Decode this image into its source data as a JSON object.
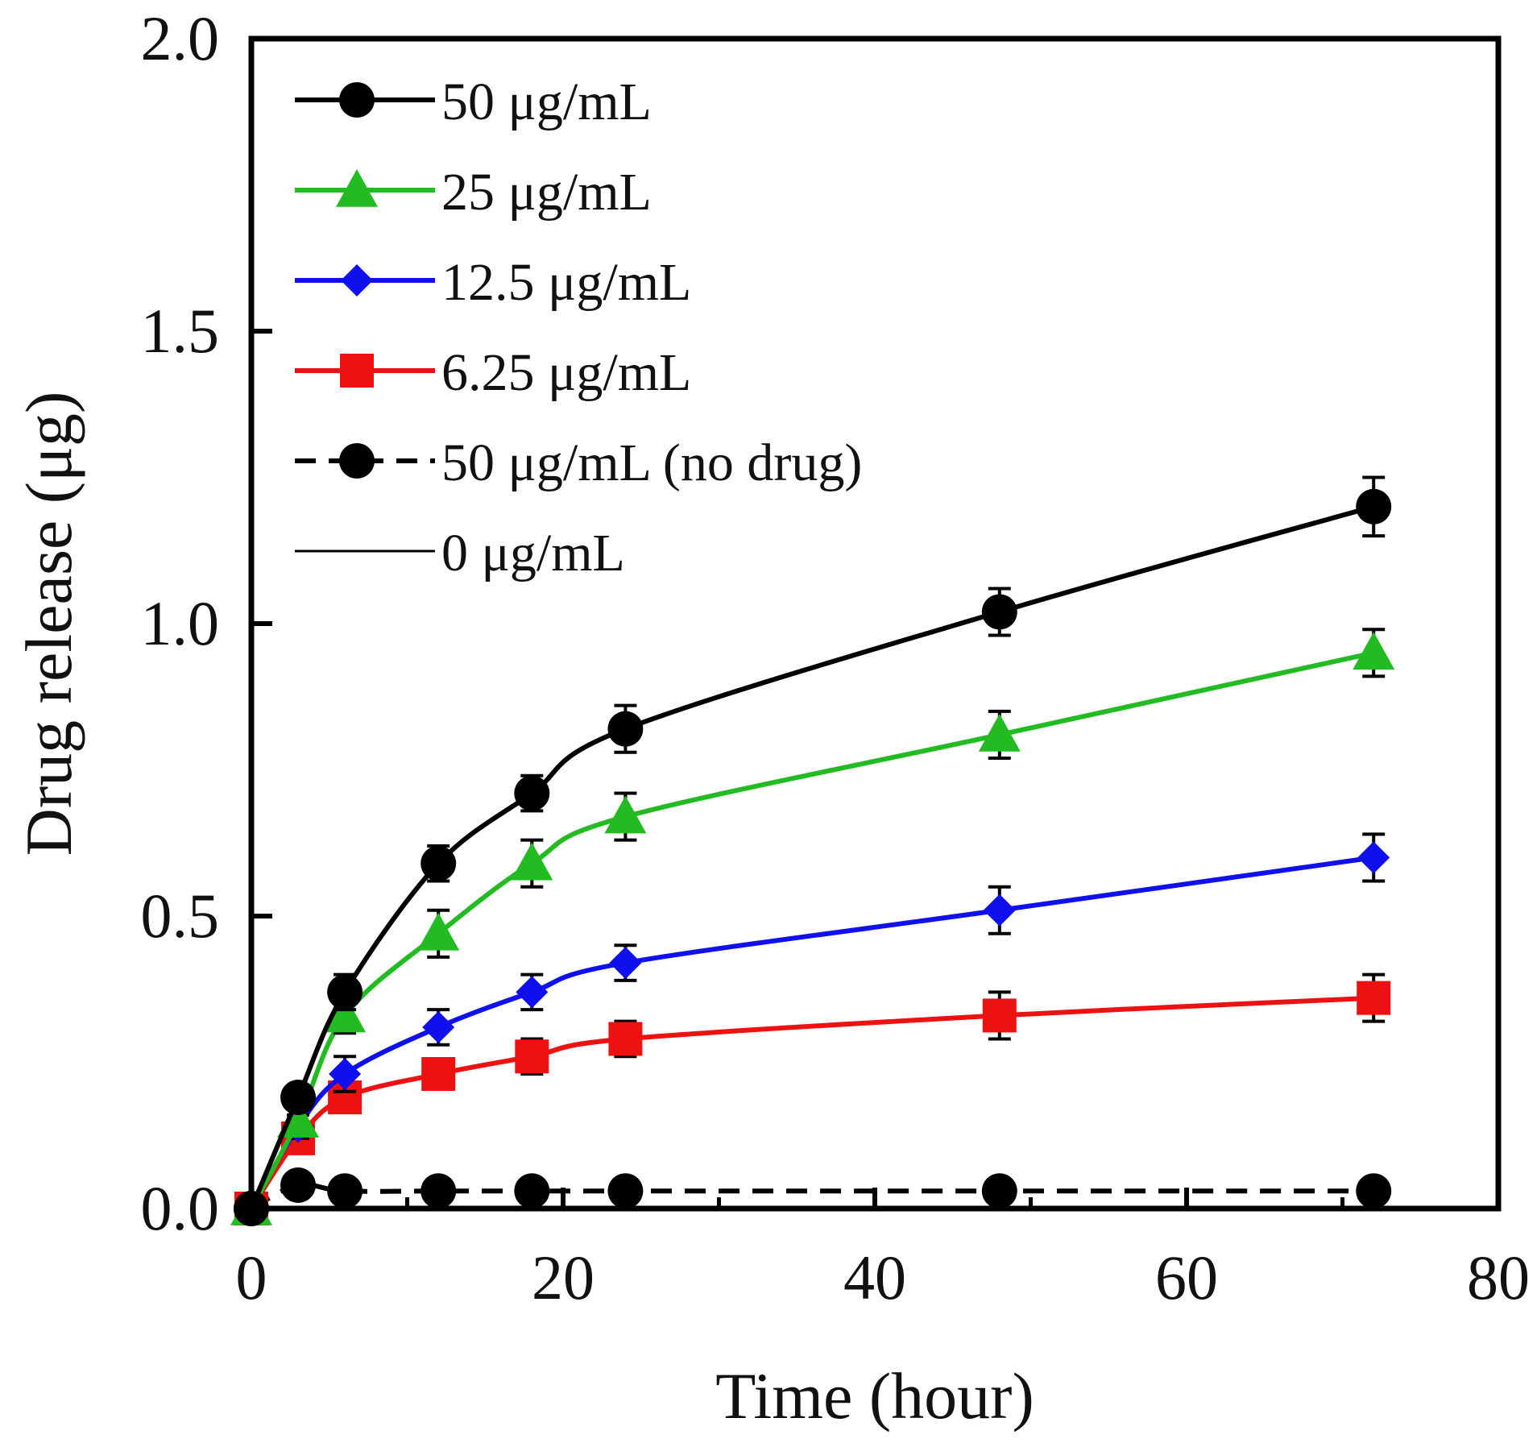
{
  "chart_data": {
    "type": "line",
    "title": "",
    "xlabel": "Time (hour)",
    "ylabel": "Drug release (μg)",
    "xlim": [
      0,
      80
    ],
    "ylim": [
      0,
      2.0
    ],
    "xticks": [
      0,
      20,
      40,
      60,
      80
    ],
    "xtick_labels": [
      "0",
      "20",
      "40",
      "60",
      "80"
    ],
    "yticks": [
      0,
      0.5,
      1.0,
      1.5,
      2.0
    ],
    "ytick_labels": [
      "0.0",
      "0.5",
      "1.0",
      "1.5",
      "2.0"
    ],
    "grid": false,
    "legend_position": "top-left",
    "x": [
      0,
      3,
      6,
      12,
      18,
      24,
      48,
      72
    ],
    "series": [
      {
        "name": "50 μg/mL",
        "color": "#000000",
        "marker": "circle",
        "dash": "solid",
        "values": [
          0,
          0.19,
          0.37,
          0.59,
          0.71,
          0.82,
          1.02,
          1.2
        ],
        "errors": [
          0,
          0.02,
          0.03,
          0.03,
          0.03,
          0.04,
          0.04,
          0.05
        ]
      },
      {
        "name": "25 μg/mL",
        "color": "#22bb22",
        "marker": "triangle",
        "dash": "solid",
        "values": [
          0,
          0.15,
          0.33,
          0.47,
          0.59,
          0.67,
          0.81,
          0.95
        ],
        "errors": [
          0,
          0.02,
          0.03,
          0.04,
          0.04,
          0.04,
          0.04,
          0.04
        ]
      },
      {
        "name": "12.5 μg/mL",
        "color": "#1010ee",
        "marker": "diamond",
        "dash": "solid",
        "values": [
          0,
          0.14,
          0.23,
          0.31,
          0.37,
          0.42,
          0.51,
          0.6
        ],
        "errors": [
          0,
          0.02,
          0.03,
          0.03,
          0.03,
          0.03,
          0.04,
          0.04
        ]
      },
      {
        "name": "6.25 μg/mL",
        "color": "#ee1111",
        "marker": "square",
        "dash": "solid",
        "values": [
          0,
          0.12,
          0.19,
          0.23,
          0.26,
          0.29,
          0.33,
          0.36
        ],
        "errors": [
          0,
          0.02,
          0.02,
          0.02,
          0.03,
          0.03,
          0.04,
          0.04
        ]
      },
      {
        "name": "50 μg/mL (no drug)",
        "color": "#000000",
        "marker": "circle",
        "dash": "dashed",
        "values": [
          0,
          0.04,
          0.03,
          0.03,
          0.03,
          0.03,
          0.03,
          0.03
        ],
        "errors": [
          0,
          0,
          0,
          0,
          0,
          0,
          0,
          0
        ]
      },
      {
        "name": "0 μg/mL",
        "color": "#000000",
        "marker": "none",
        "dash": "thin",
        "values": [
          0,
          0,
          0,
          0,
          0,
          0,
          0,
          0
        ],
        "errors": [
          0,
          0,
          0,
          0,
          0,
          0,
          0,
          0
        ]
      }
    ]
  }
}
